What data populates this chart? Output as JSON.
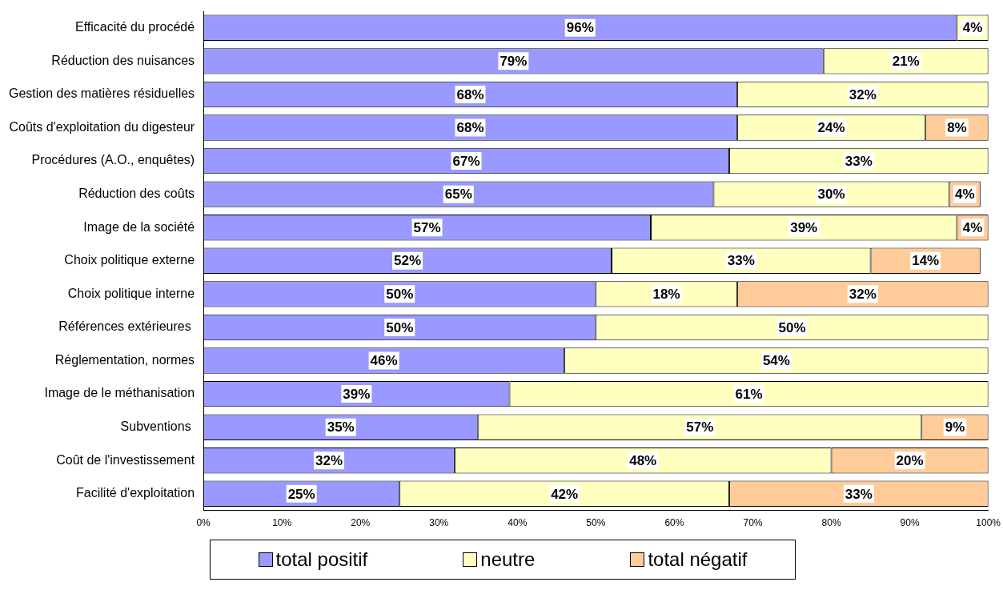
{
  "chart_data": {
    "type": "bar",
    "orientation": "horizontal",
    "stacked": true,
    "legend": "bottom",
    "categories": [
      "Efficacité du procédé",
      "Réduction des nuisances",
      "Gestion des matières résiduelles",
      "Coûts d'exploitation du digesteur",
      "Procédures (A.O., enquêtes)",
      "Réduction des coûts",
      "Image de la société",
      "Choix politique externe",
      "Choix politique interne",
      "Références extérieures ",
      "Réglementation, normes",
      "Image de le méthanisation",
      "Subventions ",
      "Coût de l'investissement",
      "Facilité d'exploitation"
    ],
    "xlim": [
      0,
      100
    ],
    "xticks": [
      {
        "value": 0,
        "label": "0%"
      },
      {
        "value": 10,
        "label": "10%"
      },
      {
        "value": 20,
        "label": "20%"
      },
      {
        "value": 30,
        "label": "30%"
      },
      {
        "value": 40,
        "label": "40%"
      },
      {
        "value": 50,
        "label": "50%"
      },
      {
        "value": 60,
        "label": "60%"
      },
      {
        "value": 70,
        "label": "70%"
      },
      {
        "value": 80,
        "label": "80%"
      },
      {
        "value": 90,
        "label": "90%"
      },
      {
        "value": 100,
        "label": "100%"
      }
    ],
    "series": [
      {
        "name": "total positif",
        "color": "#9999ff",
        "values": [
          96,
          79,
          68,
          68,
          67,
          65,
          57,
          52,
          50,
          50,
          46,
          39,
          35,
          32,
          25
        ],
        "value_labels": [
          "96%",
          "79%",
          "68%",
          "68%",
          "67%",
          "65%",
          "57%",
          "52%",
          "50%",
          "50%",
          "46%",
          "39%",
          "35%",
          "32%",
          "25%"
        ]
      },
      {
        "name": "neutre",
        "color": "#ffffc0",
        "values": [
          4,
          21,
          32,
          24,
          33,
          30,
          39,
          33,
          18,
          50,
          54,
          61,
          56.5,
          48,
          42
        ],
        "value_labels": [
          "4%",
          "21%",
          "32%",
          "24%",
          "33%",
          "30%",
          "39%",
          "33%",
          "18%",
          "50%",
          "54%",
          "61%",
          "57%",
          "48%",
          "42%"
        ]
      },
      {
        "name": "total négatif",
        "color": "#ffcc99",
        "values": [
          null,
          null,
          null,
          8,
          null,
          4,
          4,
          14,
          32,
          null,
          null,
          null,
          8.5,
          20,
          33
        ],
        "value_labels": [
          null,
          null,
          null,
          "8%",
          null,
          "4%",
          "4%",
          "14%",
          "32%",
          null,
          null,
          null,
          "9%",
          "20%",
          "33%"
        ]
      }
    ]
  }
}
